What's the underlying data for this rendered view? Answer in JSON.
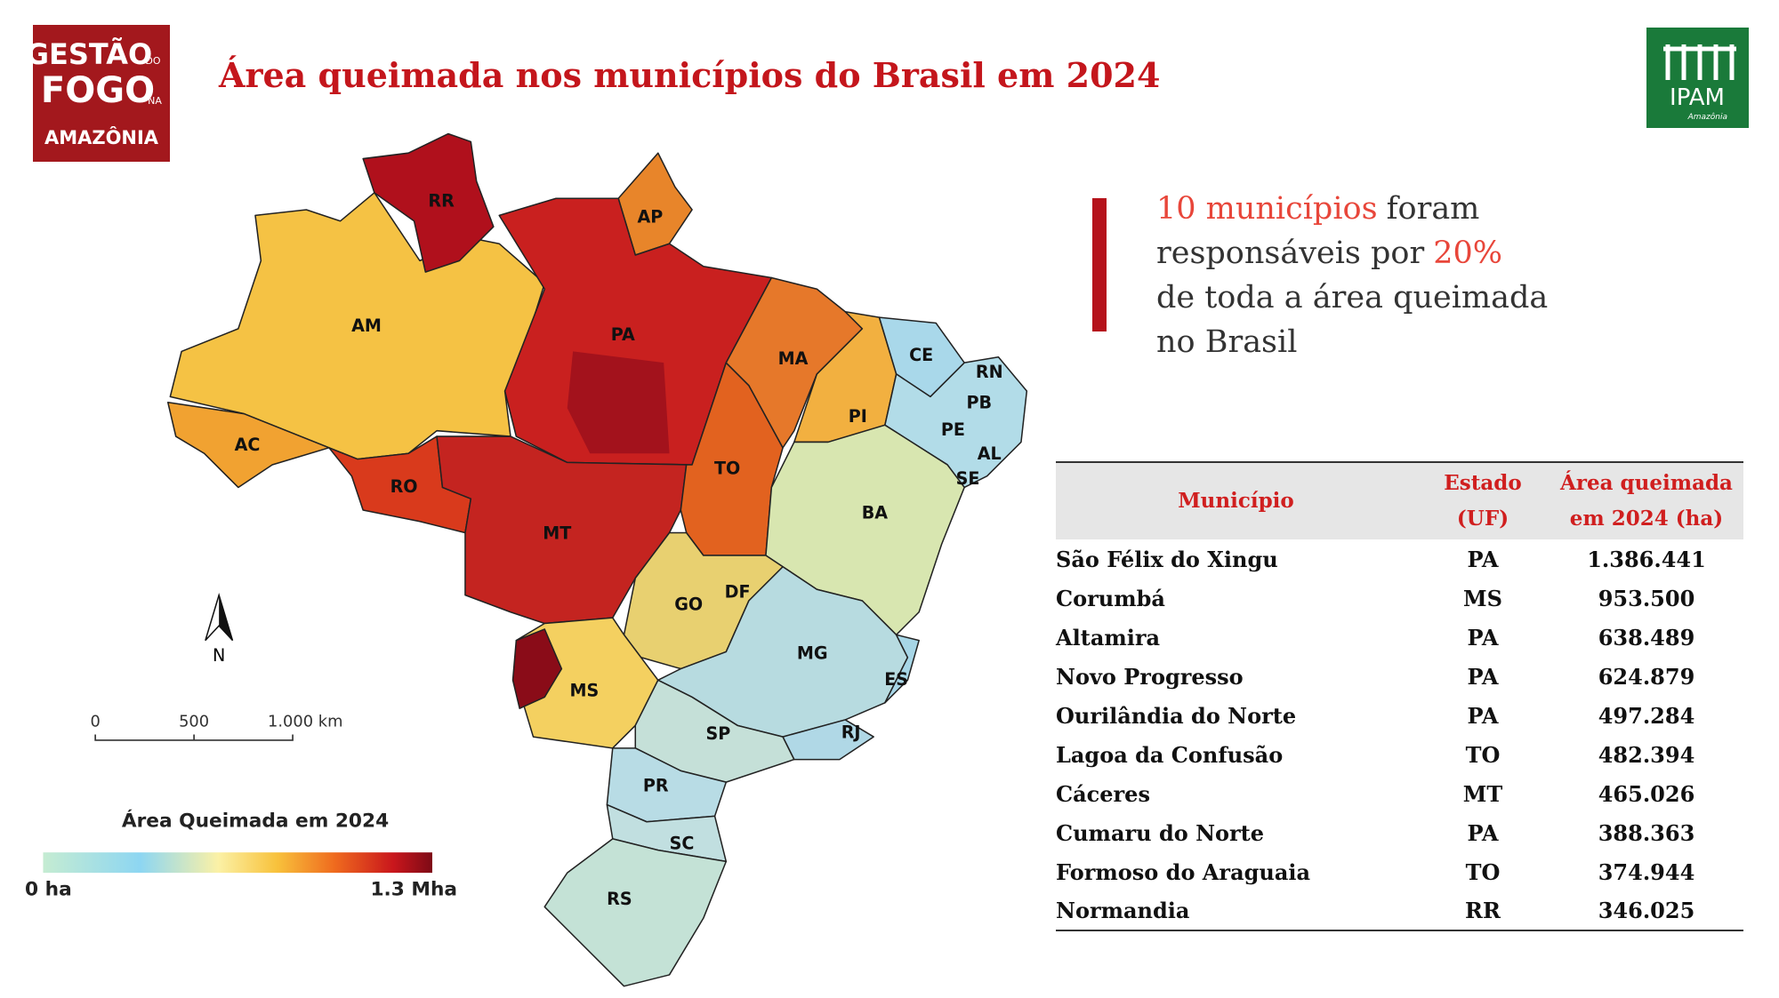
{
  "header": {
    "title": "Área queimada nos municípios do Brasil em 2024",
    "logo_left": [
      "GESTÃO",
      "DO",
      "FOGO",
      "NA",
      "AMAZÔNIA"
    ],
    "logo_right": [
      "IPAM",
      "Amazônia"
    ]
  },
  "callout": {
    "lines": [
      [
        "10 municípios",
        "foram"
      ],
      [
        "responsáveis por",
        "20%"
      ],
      [
        "de toda a área queimada"
      ],
      [
        "no Brasil"
      ]
    ]
  },
  "map": {
    "state_labels": [
      "RR",
      "AP",
      "AM",
      "PA",
      "MA",
      "CE",
      "RN",
      "PB",
      "PE",
      "AL",
      "SE",
      "PI",
      "AC",
      "RO",
      "TO",
      "MT",
      "BA",
      "DF",
      "GO",
      "MG",
      "ES",
      "MS",
      "SP",
      "RJ",
      "PR",
      "SC",
      "RS"
    ],
    "north": "N",
    "scale_bar": [
      "0",
      "500",
      "1.000 km"
    ],
    "legend": {
      "title": "Área Queimada em 2024",
      "min_label": "0 ha",
      "max_label": "1.3 Mha"
    }
  },
  "table": {
    "columns": [
      "Município",
      "Estado (UF)",
      "Área queimada em 2024 (ha)"
    ],
    "rows": [
      [
        "São Félix do Xingu",
        "PA",
        "1.386.441"
      ],
      [
        "Corumbá",
        "MS",
        "953.500"
      ],
      [
        "Altamira",
        "PA",
        "638.489"
      ],
      [
        "Novo Progresso",
        "PA",
        "624.879"
      ],
      [
        "Ourilândia do Norte",
        "PA",
        "497.284"
      ],
      [
        "Lagoa da Confusão",
        "TO",
        "482.394"
      ],
      [
        "Cáceres",
        "MT",
        "465.026"
      ],
      [
        "Cumaru do Norte",
        "PA",
        "388.363"
      ],
      [
        "Formoso do Araguaia",
        "TO",
        "374.944"
      ],
      [
        "Normandia",
        "RR",
        "346.025"
      ]
    ]
  }
}
